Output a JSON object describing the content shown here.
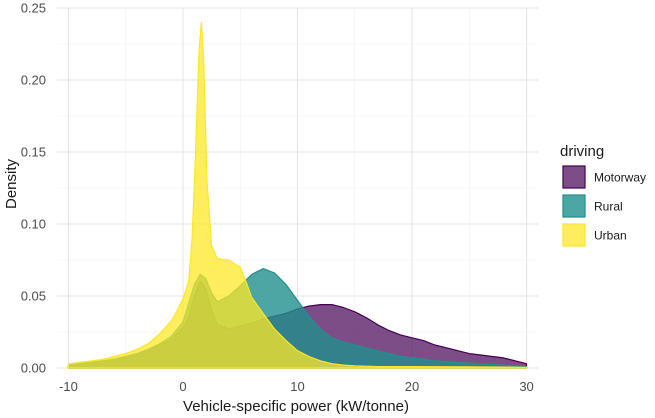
{
  "chart_data": {
    "type": "area",
    "subtype": "density",
    "title": "",
    "xlabel": "Vehicle-specific power (kW/tonne)",
    "ylabel": "Density",
    "xlim": [
      -11,
      31
    ],
    "ylim": [
      0,
      0.25
    ],
    "x_ticks": [
      -10,
      0,
      10,
      20,
      30
    ],
    "x_tick_labels": [
      "-10",
      "0",
      "10",
      "20",
      "30"
    ],
    "y_ticks": [
      0.0,
      0.05,
      0.1,
      0.15,
      0.2,
      0.25
    ],
    "y_tick_labels": [
      "0.00",
      "0.05",
      "0.10",
      "0.15",
      "0.20",
      "0.25"
    ],
    "grid": true,
    "legend": {
      "title": "driving",
      "position": "right"
    },
    "series": [
      {
        "name": "Motorway",
        "fill": "#440154",
        "stroke": "#440154",
        "opacity": 0.7,
        "points": [
          [
            -10,
            0.002
          ],
          [
            -8,
            0.004
          ],
          [
            -6,
            0.006
          ],
          [
            -4,
            0.01
          ],
          [
            -3,
            0.013
          ],
          [
            -2,
            0.016
          ],
          [
            -1,
            0.02
          ],
          [
            0,
            0.028
          ],
          [
            0.5,
            0.035
          ],
          [
            1,
            0.05
          ],
          [
            1.5,
            0.06
          ],
          [
            2,
            0.055
          ],
          [
            2.5,
            0.04
          ],
          [
            3,
            0.03
          ],
          [
            4,
            0.027
          ],
          [
            5,
            0.029
          ],
          [
            6,
            0.031
          ],
          [
            7,
            0.034
          ],
          [
            8,
            0.036
          ],
          [
            9,
            0.038
          ],
          [
            10,
            0.041
          ],
          [
            11,
            0.043
          ],
          [
            12,
            0.044
          ],
          [
            13,
            0.044
          ],
          [
            14,
            0.042
          ],
          [
            15,
            0.039
          ],
          [
            16,
            0.035
          ],
          [
            17,
            0.03
          ],
          [
            18,
            0.026
          ],
          [
            19,
            0.023
          ],
          [
            20,
            0.021
          ],
          [
            21,
            0.019
          ],
          [
            22,
            0.016
          ],
          [
            23,
            0.014
          ],
          [
            24,
            0.012
          ],
          [
            25,
            0.01
          ],
          [
            26,
            0.009
          ],
          [
            27,
            0.008
          ],
          [
            28,
            0.007
          ],
          [
            29,
            0.005
          ],
          [
            30,
            0.003
          ]
        ]
      },
      {
        "name": "Rural",
        "fill": "#21908C",
        "stroke": "#21908C",
        "opacity": 0.8,
        "points": [
          [
            -10,
            0.002
          ],
          [
            -8,
            0.004
          ],
          [
            -6,
            0.006
          ],
          [
            -4,
            0.01
          ],
          [
            -3,
            0.013
          ],
          [
            -2,
            0.017
          ],
          [
            -1,
            0.022
          ],
          [
            0,
            0.032
          ],
          [
            0.5,
            0.045
          ],
          [
            1,
            0.058
          ],
          [
            1.5,
            0.065
          ],
          [
            2,
            0.062
          ],
          [
            2.5,
            0.052
          ],
          [
            3,
            0.046
          ],
          [
            4,
            0.05
          ],
          [
            5,
            0.057
          ],
          [
            6,
            0.065
          ],
          [
            7,
            0.069
          ],
          [
            8,
            0.066
          ],
          [
            9,
            0.058
          ],
          [
            10,
            0.047
          ],
          [
            11,
            0.036
          ],
          [
            12,
            0.027
          ],
          [
            13,
            0.021
          ],
          [
            14,
            0.018
          ],
          [
            15,
            0.016
          ],
          [
            16,
            0.014
          ],
          [
            17,
            0.012
          ],
          [
            18,
            0.01
          ],
          [
            19,
            0.008
          ],
          [
            20,
            0.007
          ],
          [
            22,
            0.005
          ],
          [
            24,
            0.004
          ],
          [
            26,
            0.003
          ],
          [
            28,
            0.002
          ],
          [
            30,
            0.001
          ]
        ]
      },
      {
        "name": "Urban",
        "fill": "#FDE725",
        "stroke": "#FDE725",
        "opacity": 0.75,
        "points": [
          [
            -10,
            0.003
          ],
          [
            -8,
            0.005
          ],
          [
            -7,
            0.006
          ],
          [
            -6,
            0.008
          ],
          [
            -5,
            0.01
          ],
          [
            -4,
            0.013
          ],
          [
            -3,
            0.017
          ],
          [
            -2,
            0.024
          ],
          [
            -1,
            0.033
          ],
          [
            -0.5,
            0.04
          ],
          [
            0,
            0.048
          ],
          [
            0.5,
            0.06
          ],
          [
            0.8,
            0.09
          ],
          [
            1.1,
            0.15
          ],
          [
            1.4,
            0.22
          ],
          [
            1.6,
            0.24
          ],
          [
            1.8,
            0.215
          ],
          [
            2.1,
            0.13
          ],
          [
            2.5,
            0.085
          ],
          [
            3,
            0.076
          ],
          [
            4,
            0.075
          ],
          [
            5,
            0.07
          ],
          [
            5.5,
            0.06
          ],
          [
            6,
            0.049
          ],
          [
            7,
            0.038
          ],
          [
            8,
            0.027
          ],
          [
            9,
            0.019
          ],
          [
            10,
            0.012
          ],
          [
            11,
            0.008
          ],
          [
            12,
            0.005
          ],
          [
            13,
            0.003
          ],
          [
            14,
            0.002
          ],
          [
            15,
            0.0015
          ],
          [
            17,
            0.001
          ],
          [
            20,
            0.001
          ],
          [
            25,
            0.0008
          ],
          [
            30,
            0.0005
          ]
        ]
      }
    ]
  }
}
